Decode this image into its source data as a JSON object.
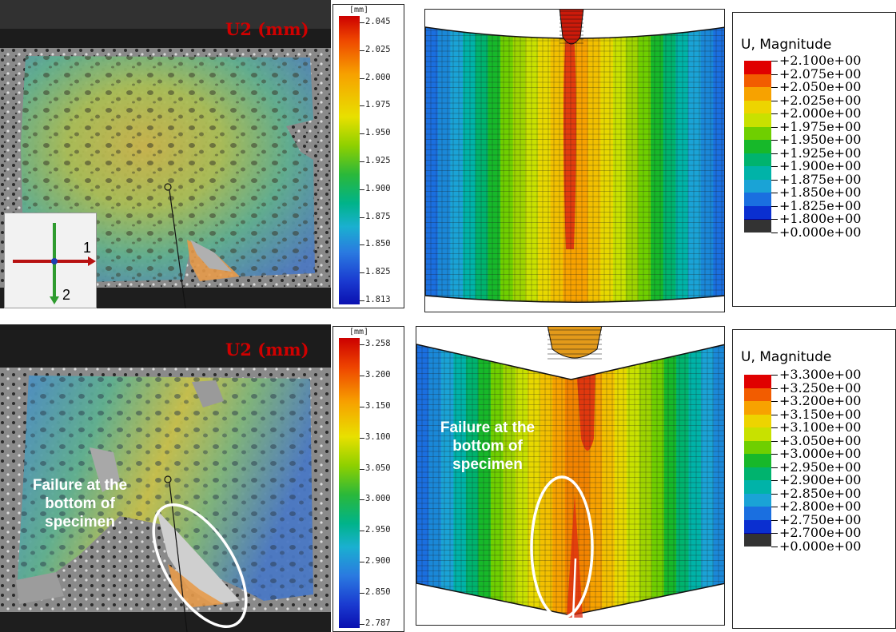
{
  "top_left": {
    "title": "U2 (mm)",
    "colorbar": {
      "unit": "[mm]",
      "ticks": [
        "2.045",
        "2.025",
        "2.000",
        "1.975",
        "1.950",
        "1.925",
        "1.900",
        "1.875",
        "1.850",
        "1.825",
        "1.813"
      ]
    },
    "axes": {
      "horizontal": "1",
      "vertical": "2"
    }
  },
  "bottom_left": {
    "title": "U2 (mm)",
    "colorbar": {
      "unit": "[mm]",
      "ticks": [
        "3.258",
        "3.200",
        "3.150",
        "3.100",
        "3.050",
        "3.000",
        "2.950",
        "2.900",
        "2.850",
        "2.787"
      ]
    },
    "annotation": [
      "Failure at the",
      "bottom of",
      "specimen"
    ]
  },
  "top_right": {
    "legend": {
      "title": "U, Magnitude",
      "values": [
        "+2.100e+00",
        "+2.075e+00",
        "+2.050e+00",
        "+2.025e+00",
        "+2.000e+00",
        "+1.975e+00",
        "+1.950e+00",
        "+1.925e+00",
        "+1.900e+00",
        "+1.875e+00",
        "+1.850e+00",
        "+1.825e+00",
        "+1.800e+00",
        "+0.000e+00"
      ]
    }
  },
  "bottom_right": {
    "legend": {
      "title": "U, Magnitude",
      "values": [
        "+3.300e+00",
        "+3.250e+00",
        "+3.200e+00",
        "+3.150e+00",
        "+3.100e+00",
        "+3.050e+00",
        "+3.000e+00",
        "+2.950e+00",
        "+2.900e+00",
        "+2.850e+00",
        "+2.800e+00",
        "+2.750e+00",
        "+2.700e+00",
        "+0.000e+00"
      ]
    },
    "annotation": [
      "Failure at the",
      "bottom of",
      "specimen"
    ]
  },
  "colors": {
    "legend_swatches": [
      "#e00000",
      "#f25c00",
      "#f7a200",
      "#edd400",
      "#c8e100",
      "#6fcf00",
      "#17b82a",
      "#00b36e",
      "#00b3a8",
      "#1aa3d6",
      "#1a6fe0",
      "#0a2fd0",
      "#0000a8",
      "#333333"
    ],
    "title_red": "#d00000"
  }
}
